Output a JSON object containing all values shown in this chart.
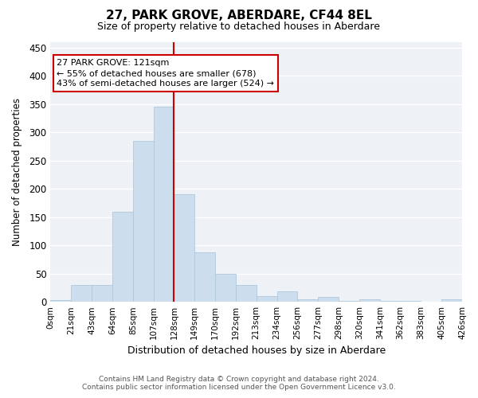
{
  "title": "27, PARK GROVE, ABERDARE, CF44 8EL",
  "subtitle": "Size of property relative to detached houses in Aberdare",
  "xlabel": "Distribution of detached houses by size in Aberdare",
  "ylabel": "Number of detached properties",
  "annotation_line1": "27 PARK GROVE: 121sqm",
  "annotation_line2": "← 55% of detached houses are smaller (678)",
  "annotation_line3": "43% of semi-detached houses are larger (524) →",
  "bin_labels": [
    "0sqm",
    "21sqm",
    "43sqm",
    "64sqm",
    "85sqm",
    "107sqm",
    "128sqm",
    "149sqm",
    "170sqm",
    "192sqm",
    "213sqm",
    "234sqm",
    "256sqm",
    "277sqm",
    "298sqm",
    "320sqm",
    "341sqm",
    "362sqm",
    "383sqm",
    "405sqm",
    "426sqm"
  ],
  "bar_values": [
    3,
    30,
    30,
    160,
    285,
    345,
    190,
    88,
    50,
    30,
    10,
    18,
    5,
    9,
    1,
    5,
    1,
    1,
    0,
    5
  ],
  "bar_color": "#ccdded",
  "bar_edge_color": "#afc8dc",
  "vline_x": 5,
  "vline_color": "#cc0000",
  "box_color": "#cc0000",
  "ylim": [
    0,
    460
  ],
  "yticks": [
    0,
    50,
    100,
    150,
    200,
    250,
    300,
    350,
    400,
    450
  ],
  "footer_line1": "Contains HM Land Registry data © Crown copyright and database right 2024.",
  "footer_line2": "Contains public sector information licensed under the Open Government Licence v3.0.",
  "bg_color": "#eef2f7",
  "title_fontsize": 11,
  "subtitle_fontsize": 9
}
